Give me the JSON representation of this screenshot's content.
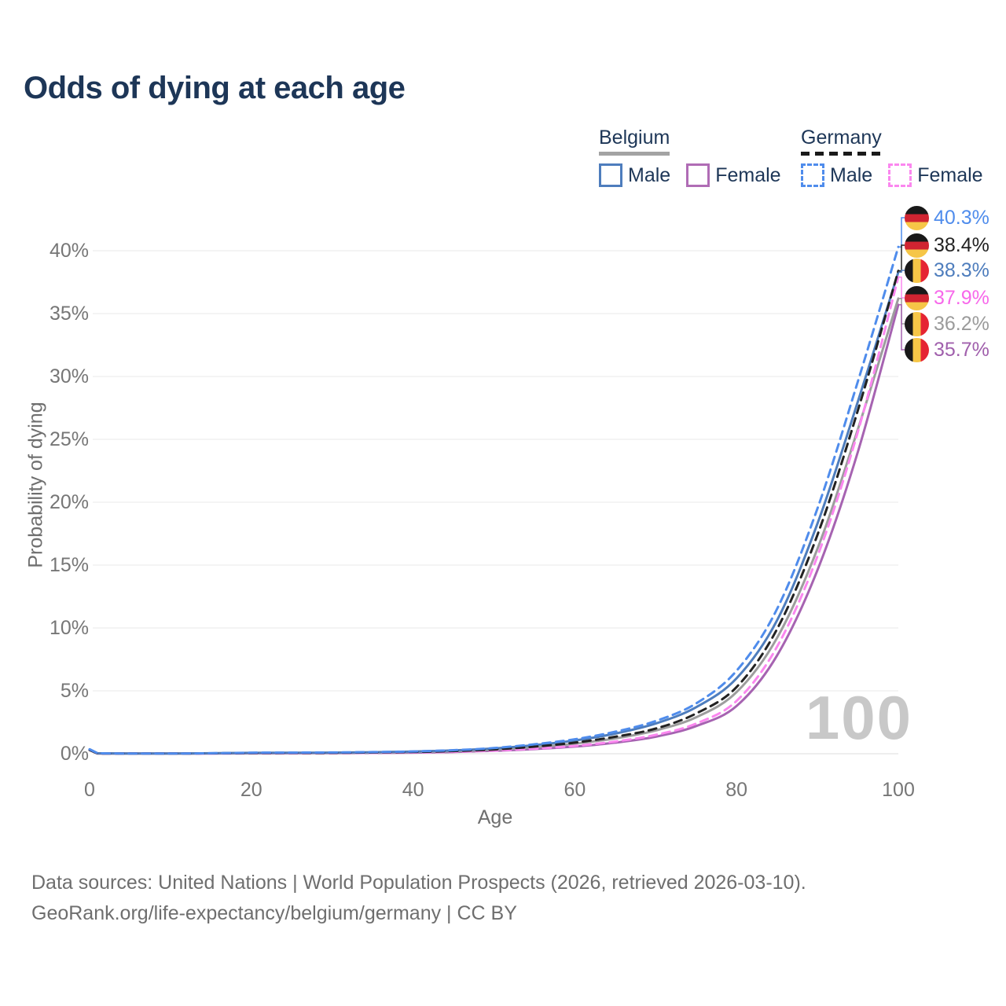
{
  "title": "Odds of dying at each age",
  "legend": {
    "groups": [
      {
        "country": "Belgium",
        "line_style": "solid",
        "underline_color": "#a3a3a3",
        "items": [
          {
            "label": "Male",
            "color": "#4e7dbd"
          },
          {
            "label": "Female",
            "color": "#b06cb5"
          }
        ]
      },
      {
        "country": "Germany",
        "line_style": "dashed",
        "underline_color": "#1a1a1a",
        "items": [
          {
            "label": "Male",
            "color": "#4f8cec"
          },
          {
            "label": "Female",
            "color": "#fb87ef"
          }
        ]
      }
    ]
  },
  "chart_data": {
    "type": "line",
    "title": "Odds of dying at each age",
    "xlabel": "Age",
    "ylabel": "Probability of dying",
    "xlim": [
      0,
      100
    ],
    "ylim": [
      0,
      42
    ],
    "x_ticks": [
      0,
      20,
      40,
      60,
      80,
      100
    ],
    "y_ticks": [
      0,
      5,
      10,
      15,
      20,
      25,
      30,
      35,
      40
    ],
    "y_tick_suffix": "%",
    "grid": "horizontal",
    "legend_position": "top-right",
    "watermark": "100",
    "ages": [
      0,
      1,
      5,
      10,
      15,
      20,
      25,
      30,
      35,
      40,
      45,
      50,
      55,
      60,
      65,
      70,
      75,
      80,
      85,
      90,
      95,
      100
    ],
    "series": [
      {
        "name": "Germany Male",
        "country": "Germany",
        "sex": "male",
        "color": "#4f8cec",
        "dashed": true,
        "flag": "de",
        "end_label": "40.3%",
        "label_color": "#4f8cec",
        "values": [
          0.35,
          0.03,
          0.01,
          0.01,
          0.04,
          0.08,
          0.09,
          0.1,
          0.13,
          0.18,
          0.28,
          0.45,
          0.75,
          1.15,
          1.75,
          2.6,
          4.0,
          6.6,
          11.5,
          19.5,
          29.6,
          40.3
        ]
      },
      {
        "name": "Germany",
        "country": "Germany",
        "sex": "both",
        "color": "#222222",
        "dashed": true,
        "flag": "de",
        "end_label": "38.4%",
        "label_color": "#222222",
        "values": [
          0.3,
          0.02,
          0.01,
          0.01,
          0.03,
          0.05,
          0.06,
          0.07,
          0.1,
          0.14,
          0.21,
          0.34,
          0.56,
          0.88,
          1.35,
          2.0,
          3.2,
          5.3,
          9.9,
          17.4,
          27.3,
          38.4
        ]
      },
      {
        "name": "Belgium Male",
        "country": "Belgium",
        "sex": "male",
        "color": "#4e7dbd",
        "dashed": false,
        "flag": "be",
        "end_label": "38.3%",
        "label_color": "#4e7dbd",
        "values": [
          0.35,
          0.03,
          0.01,
          0.01,
          0.04,
          0.07,
          0.08,
          0.09,
          0.12,
          0.17,
          0.26,
          0.42,
          0.68,
          1.05,
          1.6,
          2.4,
          3.7,
          6.0,
          10.6,
          18.3,
          28.0,
          38.3
        ]
      },
      {
        "name": "Germany Female",
        "country": "Germany",
        "sex": "female",
        "color": "#fb87ef",
        "dashed": true,
        "flag": "de",
        "end_label": "37.9%",
        "label_color": "#f768ea",
        "values": [
          0.3,
          0.02,
          0.01,
          0.01,
          0.02,
          0.03,
          0.04,
          0.05,
          0.07,
          0.1,
          0.15,
          0.25,
          0.4,
          0.62,
          0.97,
          1.5,
          2.4,
          4.2,
          8.5,
          15.7,
          25.6,
          37.9
        ]
      },
      {
        "name": "Belgium",
        "country": "Belgium",
        "sex": "both",
        "color": "#9d9d9d",
        "dashed": false,
        "flag": "be",
        "end_label": "36.2%",
        "label_color": "#9b9b9b",
        "values": [
          0.3,
          0.02,
          0.01,
          0.01,
          0.03,
          0.05,
          0.06,
          0.07,
          0.09,
          0.13,
          0.2,
          0.32,
          0.52,
          0.8,
          1.22,
          1.85,
          2.9,
          4.9,
          9.2,
          16.3,
          25.8,
          36.2
        ]
      },
      {
        "name": "Belgium Female",
        "country": "Belgium",
        "sex": "female",
        "color": "#a663b1",
        "dashed": false,
        "flag": "be",
        "end_label": "35.7%",
        "label_color": "#a05fac",
        "values": [
          0.3,
          0.02,
          0.01,
          0.01,
          0.02,
          0.03,
          0.04,
          0.05,
          0.06,
          0.09,
          0.14,
          0.23,
          0.37,
          0.57,
          0.88,
          1.35,
          2.2,
          3.8,
          7.8,
          14.6,
          24.0,
          35.7
        ]
      }
    ],
    "flag_colors": {
      "de": [
        "#191919",
        "#d02431",
        "#f6c647"
      ],
      "be": [
        "#191919",
        "#f6c647",
        "#e52433"
      ]
    }
  },
  "footer": {
    "line1": "Data sources: United Nations | World Population Prospects (2026, retrieved 2026-03-10).",
    "line2": "GeoRank.org/life-expectancy/belgium/germany | CC BY"
  }
}
